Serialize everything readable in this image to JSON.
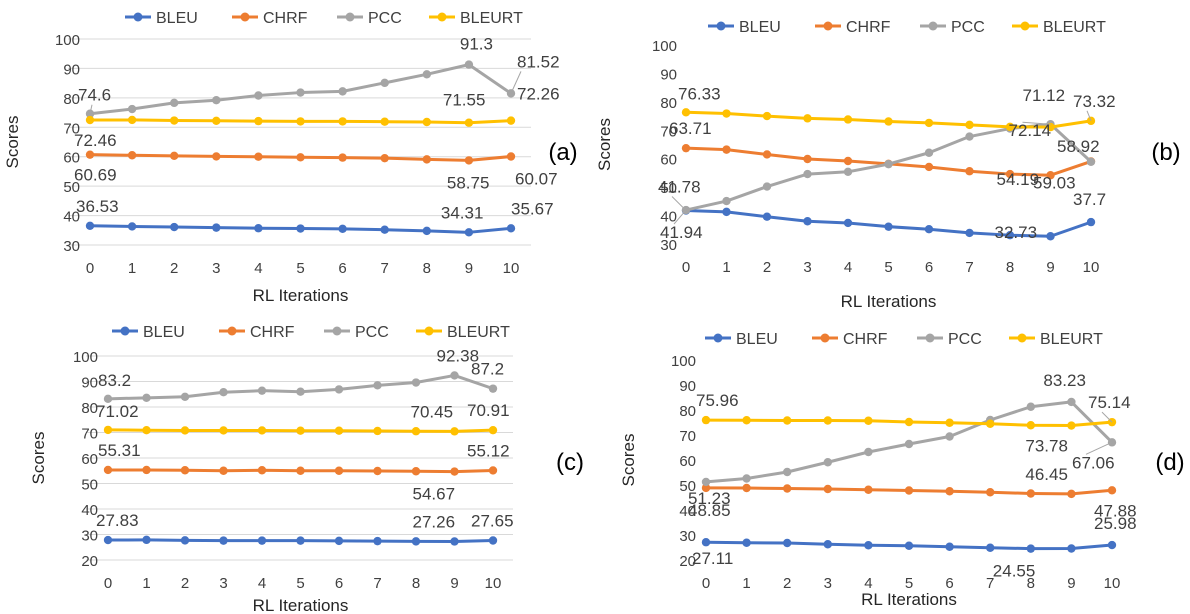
{
  "series_colors": {
    "BLEU": "#4472C4",
    "CHRF": "#ED7D31",
    "PCC": "#A5A5A5",
    "BLEURT": "#FFC000"
  },
  "label_color": "#404040",
  "chart_data": [
    {
      "type": "line",
      "panel_label": "(a)",
      "xlabel": "RL Iterations",
      "ylabel": "Scores",
      "x": [
        0,
        1,
        2,
        3,
        4,
        5,
        6,
        7,
        8,
        9,
        10
      ],
      "ylim": [
        30,
        100
      ],
      "yticks": [
        30,
        40,
        50,
        60,
        70,
        80,
        90,
        100
      ],
      "grid": true,
      "legend": "top",
      "series": [
        {
          "name": "BLEU",
          "values": [
            36.53,
            36.3,
            36.1,
            35.9,
            35.7,
            35.6,
            35.5,
            35.2,
            34.8,
            34.31,
            35.67
          ]
        },
        {
          "name": "CHRF",
          "values": [
            60.69,
            60.5,
            60.3,
            60.1,
            60.0,
            59.8,
            59.7,
            59.5,
            59.1,
            58.75,
            60.07
          ]
        },
        {
          "name": "PCC",
          "values": [
            74.6,
            76.2,
            78.3,
            79.2,
            80.8,
            81.8,
            82.2,
            85.1,
            88.0,
            91.3,
            81.52
          ]
        },
        {
          "name": "BLEURT",
          "values": [
            72.46,
            72.5,
            72.3,
            72.2,
            72.1,
            72.0,
            72.0,
            71.9,
            71.8,
            71.55,
            72.26
          ]
        }
      ],
      "data_labels": [
        {
          "text": "74.6",
          "series": "PCC",
          "index": 0
        },
        {
          "text": "72.46",
          "series": "BLEURT",
          "index": 0
        },
        {
          "text": "60.69",
          "series": "CHRF",
          "index": 0
        },
        {
          "text": "36.53",
          "series": "BLEU",
          "index": 0
        },
        {
          "text": "91.3",
          "series": "PCC",
          "index": 9
        },
        {
          "text": "71.55",
          "series": "BLEURT",
          "index": 9
        },
        {
          "text": "58.75",
          "series": "CHRF",
          "index": 9
        },
        {
          "text": "34.31",
          "series": "BLEU",
          "index": 9
        },
        {
          "text": "81.52",
          "series": "PCC",
          "index": 10
        },
        {
          "text": "72.26",
          "series": "BLEURT",
          "index": 10
        },
        {
          "text": "60.07",
          "series": "CHRF",
          "index": 10
        },
        {
          "text": "35.67",
          "series": "BLEU",
          "index": 10
        }
      ]
    },
    {
      "type": "line",
      "panel_label": "(b)",
      "xlabel": "RL Iterations",
      "ylabel": "Scores",
      "x": [
        0,
        1,
        2,
        3,
        4,
        5,
        6,
        7,
        8,
        9,
        10
      ],
      "ylim": [
        30,
        100
      ],
      "yticks": [
        30,
        40,
        50,
        60,
        70,
        80,
        90,
        100
      ],
      "grid": false,
      "legend": "top",
      "series": [
        {
          "name": "BLEU",
          "values": [
            41.78,
            41.3,
            39.6,
            38.0,
            37.4,
            36.1,
            35.2,
            33.9,
            33.1,
            32.73,
            37.7
          ]
        },
        {
          "name": "CHRF",
          "values": [
            63.71,
            63.2,
            61.5,
            59.9,
            59.2,
            58.2,
            57.1,
            55.6,
            54.6,
            54.19,
            59.03
          ]
        },
        {
          "name": "PCC",
          "values": [
            41.94,
            45.1,
            50.2,
            54.6,
            55.4,
            58.1,
            62.1,
            67.8,
            70.6,
            72.14,
            58.92
          ]
        },
        {
          "name": "BLEURT",
          "values": [
            76.33,
            75.9,
            75.0,
            74.2,
            73.8,
            73.1,
            72.6,
            71.9,
            71.2,
            71.12,
            73.32
          ]
        }
      ],
      "data_labels": [
        {
          "text": "76.33",
          "series": "BLEURT",
          "index": 0
        },
        {
          "text": "63.71",
          "series": "CHRF",
          "index": 0
        },
        {
          "text": "41.78",
          "series": "BLEU",
          "index": 0
        },
        {
          "text": "41.94",
          "series": "PCC",
          "index": 0
        },
        {
          "text": "71.12",
          "series": "BLEURT",
          "index": 9
        },
        {
          "text": "72.14",
          "series": "PCC",
          "index": 9
        },
        {
          "text": "54.19",
          "series": "CHRF",
          "index": 9
        },
        {
          "text": "32.73",
          "series": "BLEU",
          "index": 9
        },
        {
          "text": "73.32",
          "series": "BLEURT",
          "index": 10
        },
        {
          "text": "58.92",
          "series": "PCC",
          "index": 10
        },
        {
          "text": "59.03",
          "series": "CHRF",
          "index": 10
        },
        {
          "text": "37.7",
          "series": "BLEU",
          "index": 10
        }
      ]
    },
    {
      "type": "line",
      "panel_label": "(c)",
      "xlabel": "RL Iterations",
      "ylabel": "Scores",
      "x": [
        0,
        1,
        2,
        3,
        4,
        5,
        6,
        7,
        8,
        9,
        10
      ],
      "ylim": [
        20,
        100
      ],
      "yticks": [
        20,
        30,
        40,
        50,
        60,
        70,
        80,
        90,
        100
      ],
      "grid": true,
      "legend": "top",
      "series": [
        {
          "name": "BLEU",
          "values": [
            27.83,
            27.9,
            27.7,
            27.6,
            27.6,
            27.6,
            27.5,
            27.4,
            27.3,
            27.26,
            27.65
          ]
        },
        {
          "name": "CHRF",
          "values": [
            55.31,
            55.3,
            55.2,
            55.0,
            55.2,
            55.0,
            55.0,
            54.9,
            54.8,
            54.67,
            55.12
          ]
        },
        {
          "name": "PCC",
          "values": [
            83.2,
            83.6,
            84.0,
            85.8,
            86.4,
            86.0,
            86.9,
            88.5,
            89.6,
            92.38,
            87.2
          ]
        },
        {
          "name": "BLEURT",
          "values": [
            71.02,
            70.9,
            70.8,
            70.8,
            70.8,
            70.7,
            70.7,
            70.6,
            70.5,
            70.45,
            70.91
          ]
        }
      ],
      "data_labels": [
        {
          "text": "83.2",
          "series": "PCC",
          "index": 0
        },
        {
          "text": "71.02",
          "series": "BLEURT",
          "index": 0
        },
        {
          "text": "55.31",
          "series": "CHRF",
          "index": 0
        },
        {
          "text": "27.83",
          "series": "BLEU",
          "index": 0
        },
        {
          "text": "92.38",
          "series": "PCC",
          "index": 9
        },
        {
          "text": "70.45",
          "series": "BLEURT",
          "index": 9
        },
        {
          "text": "54.67",
          "series": "CHRF",
          "index": 9
        },
        {
          "text": "27.26",
          "series": "BLEU",
          "index": 9
        },
        {
          "text": "87.2",
          "series": "PCC",
          "index": 10
        },
        {
          "text": "70.91",
          "series": "BLEURT",
          "index": 10
        },
        {
          "text": "55.12",
          "series": "CHRF",
          "index": 10
        },
        {
          "text": "27.65",
          "series": "BLEU",
          "index": 10
        }
      ]
    },
    {
      "type": "line",
      "panel_label": "(d)",
      "xlabel": "RL Iterations",
      "ylabel": "Scores",
      "x": [
        0,
        1,
        2,
        3,
        4,
        5,
        6,
        7,
        8,
        9,
        10
      ],
      "ylim": [
        20,
        100
      ],
      "yticks": [
        20,
        30,
        40,
        50,
        60,
        70,
        80,
        90,
        100
      ],
      "grid": false,
      "legend": "top",
      "series": [
        {
          "name": "BLEU",
          "values": [
            27.11,
            26.9,
            26.8,
            26.3,
            25.9,
            25.7,
            25.3,
            24.9,
            24.55,
            24.6,
            25.98
          ]
        },
        {
          "name": "CHRF",
          "values": [
            48.85,
            48.8,
            48.6,
            48.4,
            48.1,
            47.8,
            47.5,
            47.1,
            46.6,
            46.45,
            47.88
          ]
        },
        {
          "name": "PCC",
          "values": [
            51.23,
            52.6,
            55.2,
            59.1,
            63.2,
            66.4,
            69.4,
            76.0,
            81.3,
            83.23,
            67.06
          ]
        },
        {
          "name": "BLEURT",
          "values": [
            75.96,
            75.9,
            75.8,
            75.8,
            75.7,
            75.2,
            74.9,
            74.5,
            73.9,
            73.78,
            75.14
          ]
        }
      ],
      "data_labels": [
        {
          "text": "75.96",
          "series": "BLEURT",
          "index": 0
        },
        {
          "text": "51.23",
          "series": "PCC",
          "index": 0
        },
        {
          "text": "48.85",
          "series": "CHRF",
          "index": 0
        },
        {
          "text": "27.11",
          "series": "BLEU",
          "index": 0
        },
        {
          "text": "83.23",
          "series": "PCC",
          "index": 9
        },
        {
          "text": "73.78",
          "series": "BLEURT",
          "index": 9
        },
        {
          "text": "46.45",
          "series": "CHRF",
          "index": 9
        },
        {
          "text": "24.55",
          "series": "BLEU",
          "index": 8
        },
        {
          "text": "75.14",
          "series": "BLEURT",
          "index": 10
        },
        {
          "text": "67.06",
          "series": "PCC",
          "index": 10
        },
        {
          "text": "47.88",
          "series": "CHRF",
          "index": 10
        },
        {
          "text": "25.98",
          "series": "BLEU",
          "index": 10
        }
      ]
    }
  ]
}
